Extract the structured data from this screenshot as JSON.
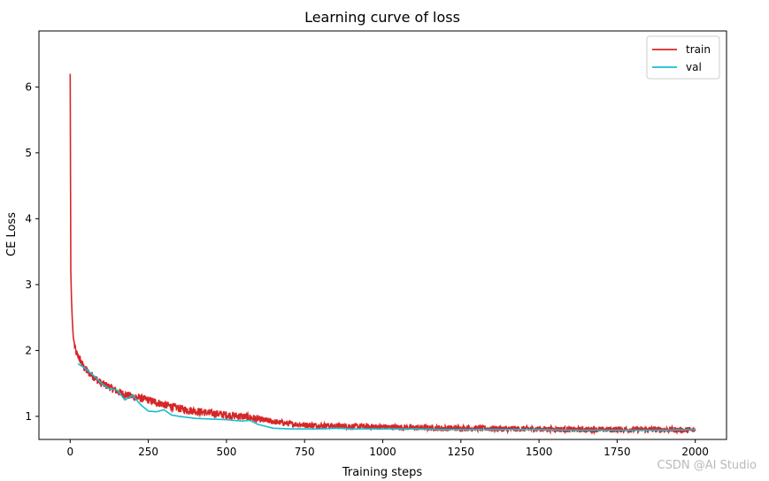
{
  "chart_data": {
    "type": "line",
    "title": "Learning curve of loss",
    "xlabel": "Training steps",
    "ylabel": "CE Loss",
    "xlim": [
      -100,
      2100
    ],
    "ylim": [
      0.65,
      6.85
    ],
    "xticks": [
      0,
      250,
      500,
      750,
      1000,
      1250,
      1500,
      1750,
      2000
    ],
    "yticks": [
      1,
      2,
      3,
      4,
      5,
      6
    ],
    "grid": false,
    "legend": "top-right",
    "series": [
      {
        "name": "train",
        "color": "#d62728",
        "noise": true,
        "x": [
          0,
          2,
          4,
          6,
          8,
          10,
          15,
          20,
          30,
          40,
          50,
          75,
          100,
          125,
          150,
          175,
          200,
          250,
          300,
          350,
          400,
          450,
          500,
          550,
          600,
          650,
          700,
          750,
          800,
          900,
          1000,
          1100,
          1200,
          1300,
          1400,
          1500,
          1600,
          1700,
          1800,
          1900,
          2000
        ],
        "y": [
          6.2,
          3.2,
          2.8,
          2.55,
          2.35,
          2.2,
          2.05,
          1.95,
          1.88,
          1.78,
          1.7,
          1.6,
          1.5,
          1.45,
          1.38,
          1.33,
          1.3,
          1.25,
          1.18,
          1.12,
          1.08,
          1.05,
          1.02,
          1.0,
          0.96,
          0.92,
          0.89,
          0.87,
          0.86,
          0.85,
          0.84,
          0.83,
          0.82,
          0.82,
          0.81,
          0.81,
          0.8,
          0.8,
          0.8,
          0.8,
          0.79
        ]
      },
      {
        "name": "val",
        "color": "#17becf",
        "noise": false,
        "x": [
          25,
          50,
          75,
          100,
          125,
          150,
          175,
          200,
          225,
          250,
          275,
          300,
          325,
          350,
          400,
          450,
          500,
          550,
          575,
          600,
          625,
          650,
          700,
          750,
          800,
          850,
          900,
          1000,
          1100,
          1200,
          1300,
          1400,
          1500,
          1600,
          1700,
          1800,
          1900,
          2000
        ],
        "y": [
          1.8,
          1.72,
          1.62,
          1.5,
          1.42,
          1.4,
          1.25,
          1.32,
          1.18,
          1.08,
          1.07,
          1.1,
          1.02,
          1.0,
          0.97,
          0.96,
          0.95,
          0.93,
          0.94,
          0.88,
          0.85,
          0.82,
          0.81,
          0.81,
          0.81,
          0.82,
          0.81,
          0.81,
          0.81,
          0.8,
          0.8,
          0.8,
          0.8,
          0.79,
          0.79,
          0.79,
          0.79,
          0.8
        ]
      }
    ]
  },
  "watermark": "CSDN @AI Studio"
}
